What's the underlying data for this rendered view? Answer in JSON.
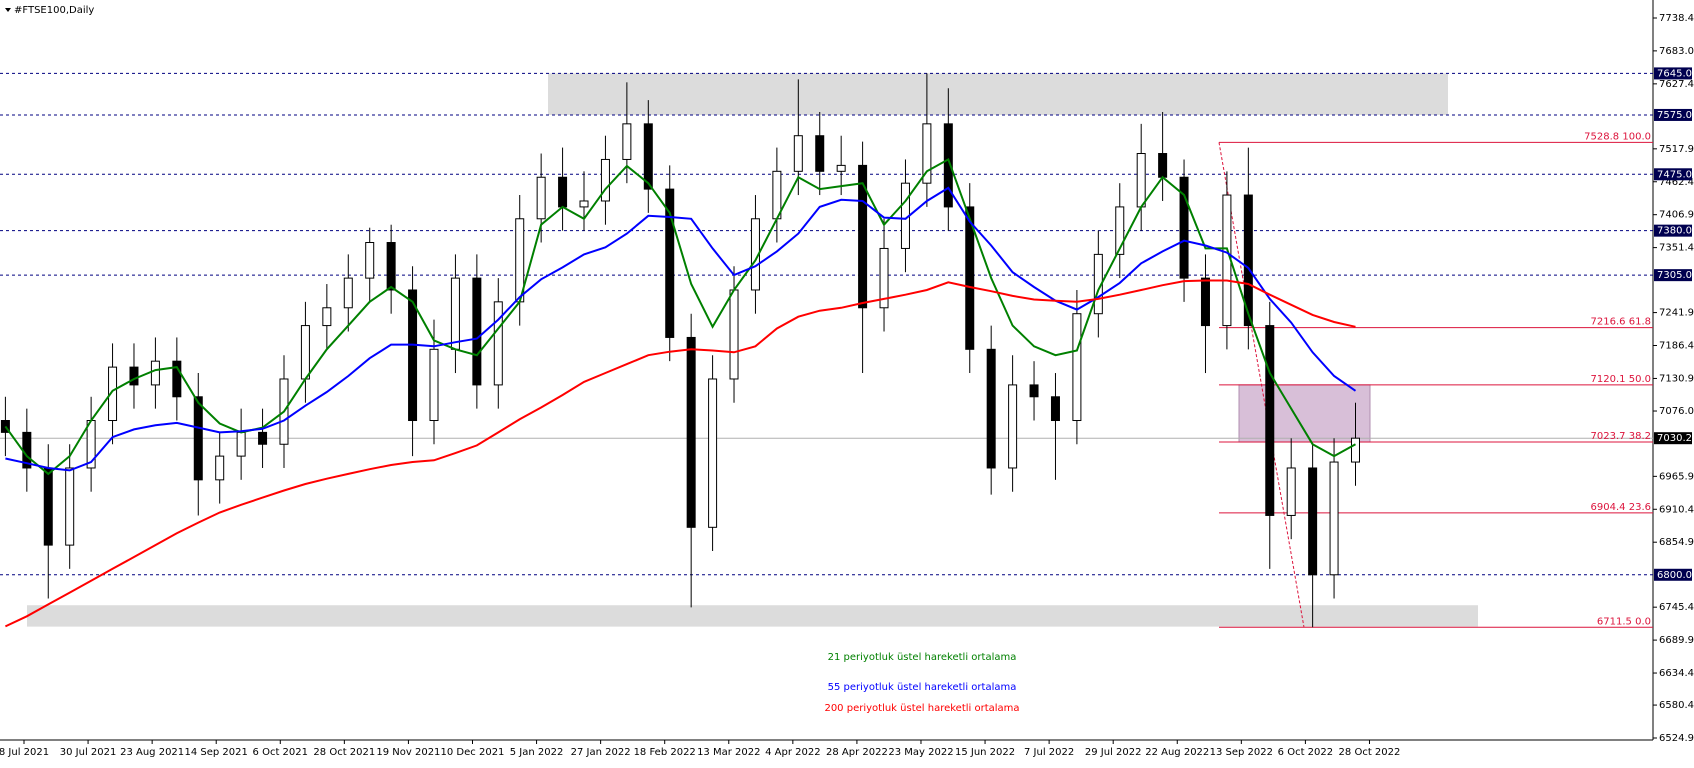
{
  "chart_data": {
    "type": "candlestick",
    "title": "#FTSE100,Daily",
    "ylim": [
      6524.9,
      7738.4
    ],
    "yticks": [
      7738.4,
      {
        "value": 7683,
        "label": "7683.0"
      },
      7627.4,
      7517.9,
      7462.4,
      7406.9,
      7351.4,
      7241.9,
      7186.4,
      7130.9,
      {
        "value": 7076,
        "label": "7076.0"
      },
      6965.9,
      6910.4,
      6854.9,
      6745.4,
      6689.9,
      6634.4,
      6580.4,
      6524.9
    ],
    "date_labels": [
      "8 Jul 2021",
      "30 Jul 2021",
      "23 Aug 2021",
      "14 Sep 2021",
      "6 Oct 2021",
      "28 Oct 2021",
      "19 Nov 2021",
      "10 Dec 2021",
      "5 Jan 2022",
      "27 Jan 2022",
      "18 Feb 2022",
      "13 Mar 2022",
      "4 Apr 2022",
      "28 Apr 2022",
      "23 May 2022",
      "15 Jun 2022",
      "7 Jul 2022",
      "29 Jul 2022",
      "22 Aug 2022",
      "13 Sep 2022",
      "6 Oct 2022",
      "28 Oct 2022"
    ],
    "open": [
      7060,
      7040,
      6980,
      6850,
      6980,
      7060,
      7150,
      7120,
      7160,
      7100,
      6960,
      7000,
      7040,
      7020,
      7130,
      7220,
      7250,
      7300,
      7360,
      7280,
      7060,
      7180,
      7300,
      7120,
      7260,
      7400,
      7470,
      7420,
      7430,
      7500,
      7560,
      7450,
      7200,
      6880,
      7130,
      7280,
      7400,
      7480,
      7540,
      7480,
      7490,
      7250,
      7350,
      7460,
      7560,
      7420,
      7180,
      6980,
      7120,
      7100,
      7060,
      7240,
      7340,
      7420,
      7510,
      7470,
      7300,
      7220,
      7440,
      7220,
      6900,
      6980,
      6800,
      6990
    ],
    "high": [
      7100,
      7080,
      7020,
      7020,
      7100,
      7190,
      7190,
      7200,
      7200,
      7140,
      7040,
      7080,
      7080,
      7170,
      7260,
      7290,
      7340,
      7385,
      7390,
      7320,
      7230,
      7340,
      7340,
      7300,
      7440,
      7510,
      7520,
      7480,
      7540,
      7630,
      7600,
      7490,
      7240,
      7170,
      7320,
      7440,
      7520,
      7635,
      7580,
      7540,
      7530,
      7400,
      7500,
      7645,
      7620,
      7460,
      7220,
      7170,
      7160,
      7140,
      7280,
      7380,
      7460,
      7560,
      7580,
      7500,
      7340,
      7480,
      7520,
      7260,
      7030,
      7020,
      7030,
      7090
    ],
    "low": [
      7000,
      6940,
      6760,
      6810,
      6940,
      7020,
      7080,
      7080,
      7060,
      6900,
      6920,
      6960,
      6980,
      6980,
      7090,
      7180,
      7210,
      7260,
      7240,
      7000,
      7020,
      7140,
      7080,
      7080,
      7220,
      7360,
      7380,
      7380,
      7390,
      7460,
      7410,
      7160,
      6745,
      6840,
      7090,
      7240,
      7360,
      7440,
      7440,
      7440,
      7140,
      7210,
      7310,
      7420,
      7380,
      7140,
      6935,
      6940,
      7060,
      6960,
      7020,
      7200,
      7300,
      7380,
      7430,
      7260,
      7140,
      7180,
      7180,
      6810,
      6860,
      6711.5,
      6760,
      6950
    ],
    "close": [
      7040,
      6980,
      6850,
      6980,
      7060,
      7150,
      7120,
      7160,
      7100,
      6960,
      7000,
      7040,
      7020,
      7130,
      7220,
      7250,
      7300,
      7360,
      7280,
      7060,
      7180,
      7300,
      7120,
      7260,
      7400,
      7470,
      7420,
      7430,
      7500,
      7560,
      7450,
      7200,
      6880,
      7130,
      7280,
      7400,
      7480,
      7540,
      7480,
      7490,
      7250,
      7350,
      7460,
      7560,
      7420,
      7180,
      6980,
      7120,
      7100,
      7060,
      7240,
      7340,
      7420,
      7510,
      7470,
      7300,
      7220,
      7440,
      7220,
      6900,
      6980,
      6800,
      6990,
      7030.2
    ],
    "series": [
      {
        "name": "21 periyotluk üstel hareketli ortalama",
        "color": "#008000",
        "values": [
          7050,
          7000,
          6970,
          7000,
          7060,
          7110,
          7130,
          7145,
          7150,
          7090,
          7055,
          7040,
          7048,
          7075,
          7130,
          7180,
          7220,
          7260,
          7285,
          7260,
          7195,
          7180,
          7170,
          7215,
          7260,
          7390,
          7420,
          7400,
          7450,
          7489,
          7460,
          7410,
          7290,
          7218,
          7280,
          7330,
          7400,
          7470,
          7450,
          7455,
          7460,
          7390,
          7430,
          7480,
          7500,
          7400,
          7300,
          7220,
          7185,
          7170,
          7178,
          7280,
          7350,
          7420,
          7470,
          7440,
          7350,
          7350,
          7240,
          7140,
          7080,
          7020,
          7000,
          7020
        ]
      },
      {
        "name": "55 periyotluk üstel hareketli ortalama",
        "color": "#0000ff",
        "values": [
          6996,
          6988,
          6980,
          6976,
          6990,
          7032,
          7045,
          7052,
          7056,
          7048,
          7040,
          7042,
          7046,
          7060,
          7085,
          7108,
          7135,
          7165,
          7188,
          7188,
          7185,
          7192,
          7198,
          7230,
          7268,
          7298,
          7318,
          7340,
          7352,
          7375,
          7405,
          7403,
          7400,
          7350,
          7305,
          7320,
          7345,
          7375,
          7420,
          7432,
          7430,
          7402,
          7400,
          7430,
          7452,
          7395,
          7355,
          7310,
          7285,
          7262,
          7247,
          7268,
          7292,
          7325,
          7345,
          7363,
          7355,
          7343,
          7317,
          7265,
          7225,
          7175,
          7135,
          7110
        ]
      },
      {
        "name": "200 periyotluk üstel hareketli ortalama",
        "color": "#ff0000",
        "values": [
          6713,
          6730,
          6750,
          6770,
          6790,
          6810,
          6830,
          6850,
          6870,
          6888,
          6905,
          6918,
          6930,
          6942,
          6953,
          6962,
          6970,
          6978,
          6985,
          6990,
          6993,
          7005,
          7018,
          7040,
          7062,
          7082,
          7103,
          7125,
          7140,
          7155,
          7170,
          7176,
          7180,
          7178,
          7175,
          7185,
          7215,
          7235,
          7245,
          7250,
          7258,
          7265,
          7272,
          7280,
          7293,
          7285,
          7278,
          7270,
          7264,
          7262,
          7260,
          7265,
          7272,
          7280,
          7288,
          7295,
          7296,
          7296,
          7290,
          7272,
          7255,
          7238,
          7226,
          7218
        ]
      }
    ],
    "levels": [
      {
        "value": 7645,
        "label": "7645.0"
      },
      {
        "value": 7575,
        "label": "7575.0"
      },
      {
        "value": 7475,
        "label": "7475.0"
      },
      {
        "value": 7380,
        "label": "7380.0"
      },
      {
        "value": 7305,
        "label": "7305.0"
      },
      {
        "value": 6800,
        "label": "6800.0"
      }
    ],
    "zones": [
      [
        7575,
        7645
      ],
      [
        6712.6,
        6748.7
      ]
    ],
    "last_price": 7030.2,
    "fibonacci": [
      {
        "price": 7528.8,
        "ratio": {
          "value": 100,
          "label": "100.0"
        }
      },
      {
        "price": 7216.6,
        "ratio": 61.8
      },
      {
        "price": 7120.1,
        "ratio": {
          "value": 50,
          "label": "50.0"
        }
      },
      {
        "price": 7023.7,
        "ratio": 38.2
      },
      {
        "price": 6904.4,
        "ratio": 23.6
      },
      {
        "price": 6711.5,
        "ratio": {
          "value": 0,
          "label": "0.0"
        }
      }
    ]
  }
}
